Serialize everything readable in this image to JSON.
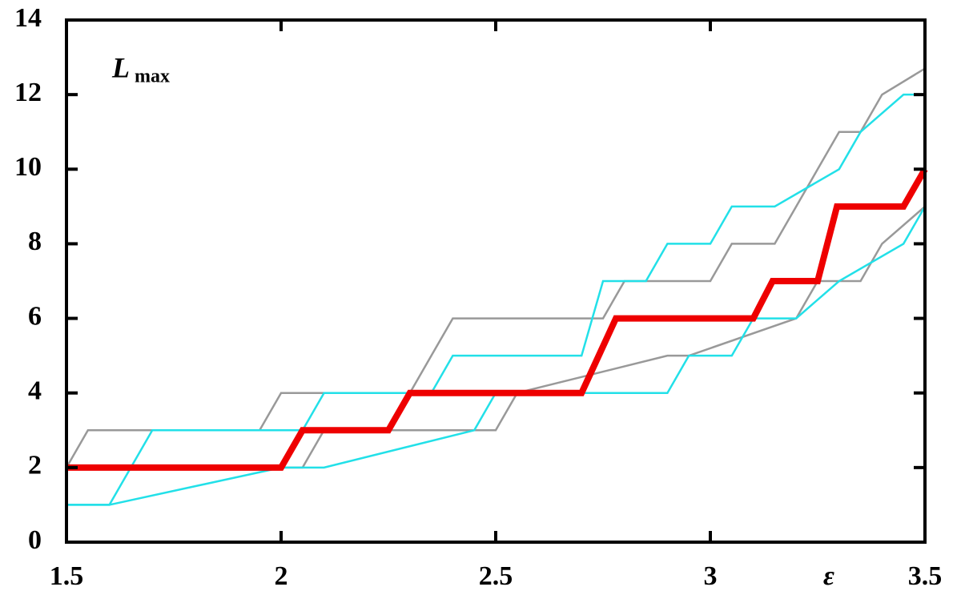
{
  "chart_data": {
    "type": "line",
    "annotation": {
      "main": "L",
      "sub": "max"
    },
    "xlabel": "ε",
    "xlim": [
      1.5,
      3.5
    ],
    "xticks": [
      1.5,
      2,
      2.5,
      3,
      3.5
    ],
    "ylim": [
      0,
      14
    ],
    "yticks": [
      0,
      2,
      4,
      6,
      8,
      10,
      12,
      14
    ],
    "grid": false,
    "series": [
      {
        "color": "#999999",
        "x": [
          1.5,
          1.55,
          1.95,
          2.0,
          2.3,
          2.35,
          2.4,
          2.75,
          2.8,
          3.0,
          3.05,
          3.15,
          3.2,
          3.25,
          3.3,
          3.35,
          3.4,
          3.5
        ],
        "values": [
          2,
          3,
          3,
          4,
          4,
          5,
          6,
          6,
          7,
          7,
          8,
          8,
          9,
          10,
          11,
          11,
          12,
          12.7
        ]
      },
      {
        "color": "#999999",
        "x": [
          1.5,
          1.6,
          2.05,
          2.1,
          2.5,
          2.55,
          2.9,
          2.95,
          3.2,
          3.25,
          3.35,
          3.4,
          3.5
        ],
        "values": [
          2,
          2,
          2,
          3,
          3,
          4,
          5,
          5,
          6,
          7,
          7,
          8,
          9
        ]
      },
      {
        "color": "#22e0e8",
        "x": [
          1.5,
          1.6,
          1.7,
          2.05,
          2.1,
          2.35,
          2.4,
          2.7,
          2.75,
          2.85,
          2.9,
          3.0,
          3.05,
          3.15,
          3.3,
          3.35,
          3.45,
          3.5
        ],
        "values": [
          1,
          1,
          3,
          3,
          4,
          4,
          5,
          5,
          7,
          7,
          8,
          8,
          9,
          9,
          10,
          11,
          12,
          12
        ]
      },
      {
        "color": "#22e0e8",
        "x": [
          1.5,
          1.6,
          2.0,
          2.1,
          2.45,
          2.5,
          2.9,
          2.95,
          3.05,
          3.1,
          3.2,
          3.3,
          3.45,
          3.5
        ],
        "values": [
          1,
          1,
          2,
          2,
          3,
          4,
          4,
          5,
          5,
          6,
          6,
          7,
          8,
          9
        ]
      },
      {
        "color": "#ee0000",
        "x": [
          1.5,
          2.0,
          2.05,
          2.25,
          2.3,
          2.7,
          2.78,
          3.1,
          3.145,
          3.25,
          3.295,
          3.45,
          3.5
        ],
        "values": [
          2,
          2,
          3,
          3,
          4,
          4,
          6,
          6,
          7,
          7,
          9,
          9,
          10
        ]
      }
    ]
  }
}
